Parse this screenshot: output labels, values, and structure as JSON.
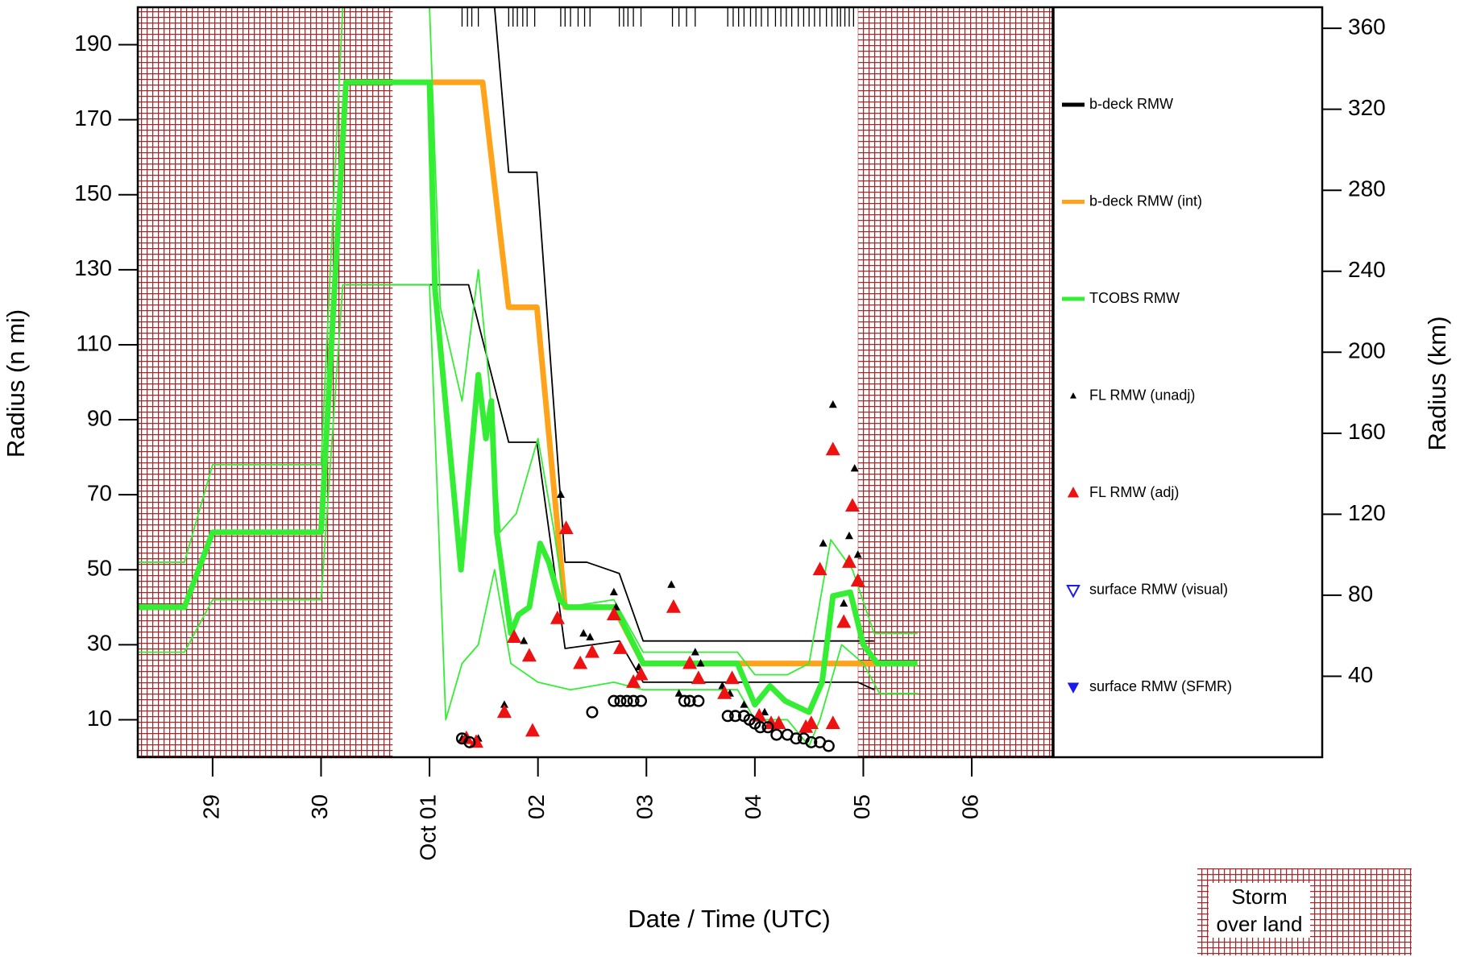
{
  "chart_data": {
    "type": "line",
    "x_label": "Date / Time (UTC)",
    "y_label": "Radius (n mi)",
    "y2_label": "Radius (km)",
    "xlim": [
      28.31,
      36.75
    ],
    "xticks": [
      29,
      30,
      {
        "value": 31,
        "label": "Oct 01"
      },
      {
        "value": 32,
        "label": "02"
      },
      {
        "value": 33,
        "label": "03"
      },
      {
        "value": 34,
        "label": "04"
      },
      {
        "value": 35,
        "label": "05"
      },
      {
        "value": 36,
        "label": "06"
      }
    ],
    "ylim": [
      0,
      200
    ],
    "yticks": [
      10,
      30,
      50,
      70,
      90,
      110,
      130,
      150,
      170,
      190
    ],
    "y2lim": [
      0,
      370.4
    ],
    "y2ticks": [
      40,
      80,
      120,
      160,
      200,
      240,
      280,
      320,
      360
    ],
    "land_label": "Storm over land",
    "land": [
      [
        28.31,
        30.66
      ],
      [
        34.95,
        36.75
      ]
    ],
    "fix_times": [
      31.3,
      31.35,
      31.39,
      31.45,
      31.73,
      31.77,
      31.81,
      31.86,
      31.9,
      31.97,
      32.21,
      32.25,
      32.3,
      32.37,
      32.43,
      32.48,
      32.75,
      32.79,
      32.83,
      32.88,
      32.95,
      33.24,
      33.3,
      33.37,
      33.45,
      33.75,
      33.8,
      33.85,
      33.9,
      33.96,
      34.01,
      34.06,
      34.12,
      34.19,
      34.24,
      34.29,
      34.34,
      34.4,
      34.45,
      34.5,
      34.55,
      34.6,
      34.66,
      34.71,
      34.76,
      34.79,
      34.83,
      34.87,
      34.91
    ],
    "series": [
      {
        "name": "b-deck RMW",
        "color": "#000000",
        "style": "line",
        "weight": "bold",
        "x": [],
        "values": []
      },
      {
        "color": "#000000",
        "style": "line",
        "weight": "thin",
        "x": [
          31.6,
          31.73,
          31.99,
          32.25,
          32.45,
          32.75,
          32.97,
          34.95,
          35.1
        ],
        "values": [
          200,
          156,
          156,
          52,
          52,
          49,
          31,
          31,
          31
        ]
      },
      {
        "color": "#000000",
        "style": "line",
        "weight": "thin",
        "x": [
          30.23,
          31.36,
          31.73,
          31.99,
          32.25,
          32.75,
          32.97,
          34.95,
          35.1
        ],
        "values": [
          126,
          126,
          84,
          84,
          29,
          31,
          20,
          20,
          18
        ]
      },
      {
        "name": "b-deck RMW (int)",
        "color": "#ffa31a",
        "style": "line",
        "weight": "bold",
        "x": [
          31.0,
          31.49,
          31.73,
          31.99,
          32.25,
          32.7,
          32.97,
          35.17
        ],
        "values": [
          180,
          180,
          120,
          120,
          40,
          40,
          25,
          25
        ]
      },
      {
        "color": "#33ee33",
        "style": "line",
        "weight": "thin",
        "x": [
          28.31,
          28.74,
          29,
          30,
          30.2,
          31.0,
          31.1,
          31.3,
          31.45,
          31.55,
          31.65,
          31.8,
          32.0,
          32.15,
          32.25,
          32.7,
          32.97,
          33.84,
          34.0,
          34.3,
          34.5,
          34.7,
          34.9,
          35.1,
          35.5
        ],
        "values": [
          52,
          52,
          78,
          78,
          200,
          200,
          120,
          95,
          130,
          100,
          60,
          65,
          85,
          60,
          40,
          42,
          28,
          28,
          22,
          22,
          25,
          58,
          50,
          33,
          33
        ]
      },
      {
        "color": "#33ee33",
        "style": "line",
        "weight": "thin",
        "x": [
          28.31,
          28.74,
          29,
          30,
          30.2,
          31.0,
          31.15,
          31.3,
          31.45,
          31.6,
          31.75,
          32.0,
          32.3,
          32.7,
          32.97,
          33.84,
          34.0,
          34.3,
          34.5,
          34.6,
          34.8,
          35.0,
          35.15,
          35.5
        ],
        "values": [
          28,
          28,
          42,
          42,
          126,
          126,
          10,
          25,
          30,
          50,
          25,
          20,
          18,
          20,
          18,
          18,
          10,
          10,
          3,
          10,
          30,
          25,
          17,
          17
        ]
      },
      {
        "name": "TCOBS RMW",
        "color": "#33ee33",
        "style": "line",
        "weight": "bold",
        "x": [
          28.31,
          28.74,
          29,
          30,
          30.23,
          31.0,
          31.05,
          31.29,
          31.45,
          31.52,
          31.57,
          31.62,
          31.75,
          31.82,
          31.92,
          32.02,
          32.1,
          32.2,
          32.27,
          32.71,
          32.97,
          33.84,
          34.0,
          34.14,
          34.28,
          34.5,
          34.62,
          34.72,
          34.88,
          35.0,
          35.13,
          35.5
        ],
        "values": [
          40,
          40,
          60,
          60,
          180,
          180,
          125,
          50,
          102,
          85,
          95,
          60,
          33,
          38,
          40,
          57,
          52,
          42,
          40,
          40,
          25,
          25,
          14,
          19,
          15,
          12,
          20,
          43,
          44,
          30,
          25,
          25
        ]
      },
      {
        "name": "FL RMW (unadj)",
        "color": "#000000",
        "style": "marker",
        "marker": "triangle",
        "marker_size": "small",
        "x": [
          31.3,
          31.45,
          31.69,
          31.87,
          32.21,
          32.42,
          32.48,
          32.7,
          32.72,
          32.93,
          33.23,
          33.3,
          33.45,
          33.5,
          33.7,
          33.77,
          33.9,
          34.09,
          34.63,
          34.72,
          34.82,
          34.87,
          34.92,
          34.95
        ],
        "values": [
          5,
          5,
          14,
          31,
          70,
          33,
          32,
          44,
          40,
          24,
          46,
          17,
          28,
          25,
          19,
          17,
          14,
          12,
          57,
          94,
          41,
          59,
          77,
          54
        ]
      },
      {
        "name": "FL RMW (adj)",
        "color": "#ee1111",
        "style": "marker",
        "marker": "triangle",
        "marker_size": "large",
        "x": [
          31.34,
          31.43,
          31.69,
          31.78,
          31.92,
          31.95,
          32.18,
          32.26,
          32.39,
          32.5,
          32.7,
          32.76,
          32.88,
          32.95,
          33.25,
          33.4,
          33.48,
          33.72,
          33.79,
          34.04,
          34.15,
          34.22,
          34.47,
          34.52,
          34.6,
          34.72,
          34.72,
          34.82,
          34.87,
          34.9,
          34.95
        ],
        "values": [
          5,
          4,
          12,
          32,
          27,
          7,
          37,
          61,
          25,
          28,
          38,
          29,
          20,
          22,
          40,
          25,
          21,
          17,
          21,
          11,
          9,
          9,
          8,
          9,
          50,
          82,
          9,
          36,
          52,
          67,
          47
        ]
      },
      {
        "color": "#000000",
        "style": "marker",
        "marker": "circle-open",
        "marker_size": "large",
        "x": [
          31.3,
          31.37,
          32.5,
          32.7,
          32.76,
          32.82,
          32.88,
          32.95,
          33.35,
          33.4,
          33.48,
          33.75,
          33.82,
          33.9,
          33.95,
          34.0,
          34.05,
          34.12,
          34.2,
          34.3,
          34.38,
          34.45,
          34.52,
          34.6,
          34.68
        ],
        "values": [
          5,
          4,
          12,
          15,
          15,
          15,
          15,
          15,
          15,
          15,
          15,
          11,
          11,
          11,
          10,
          9,
          8,
          8,
          6,
          6,
          5,
          5,
          4,
          4,
          3
        ]
      },
      {
        "name": "surface RMW (visual)",
        "color": "#1a1aee",
        "style": "marker",
        "marker": "triangle-down-open",
        "marker_size": "large",
        "x": [],
        "values": []
      },
      {
        "name": "surface RMW (SFMR)",
        "color": "#1a1aee",
        "style": "marker",
        "marker": "triangle-down",
        "marker_size": "large",
        "x": [],
        "values": []
      }
    ]
  }
}
